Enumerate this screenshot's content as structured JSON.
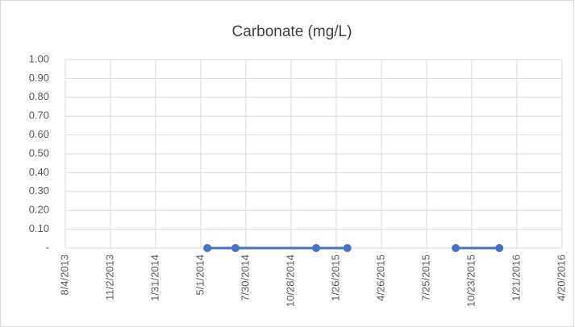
{
  "chart_data": {
    "type": "line",
    "title": "Carbonate (mg/L)",
    "x": [
      "5/14/2014",
      "7/9/2014",
      "12/17/2014",
      "2/17/2015",
      null,
      "9/21/2015",
      "12/17/2015"
    ],
    "series": [
      {
        "color": "#4472c4",
        "values": [
          0,
          0,
          0,
          0,
          null,
          0,
          0
        ]
      }
    ],
    "xlim": [
      "8/4/2013",
      "4/20/2016"
    ],
    "xticks": [
      "8/4/2013",
      "11/2/2013",
      "1/31/2014",
      "5/1/2014",
      "7/30/2014",
      "10/28/2014",
      "1/26/2015",
      "4/26/2015",
      "7/25/2015",
      "10/23/2015",
      "1/21/2016",
      "4/20/2016"
    ],
    "ylim": [
      0,
      1
    ],
    "yticks": [
      {
        "value": 0,
        "label": "-"
      },
      {
        "value": 0.1,
        "label": "0.10"
      },
      {
        "value": 0.2,
        "label": "0.20"
      },
      {
        "value": 0.3,
        "label": "0.30"
      },
      {
        "value": 0.4,
        "label": "0.40"
      },
      {
        "value": 0.5,
        "label": "0.50"
      },
      {
        "value": 0.6,
        "label": "0.60"
      },
      {
        "value": 0.7,
        "label": "0.70"
      },
      {
        "value": 0.8,
        "label": "0.80"
      },
      {
        "value": 0.9,
        "label": "0.90"
      },
      {
        "value": 1,
        "label": "1.00"
      }
    ],
    "grid": true
  }
}
